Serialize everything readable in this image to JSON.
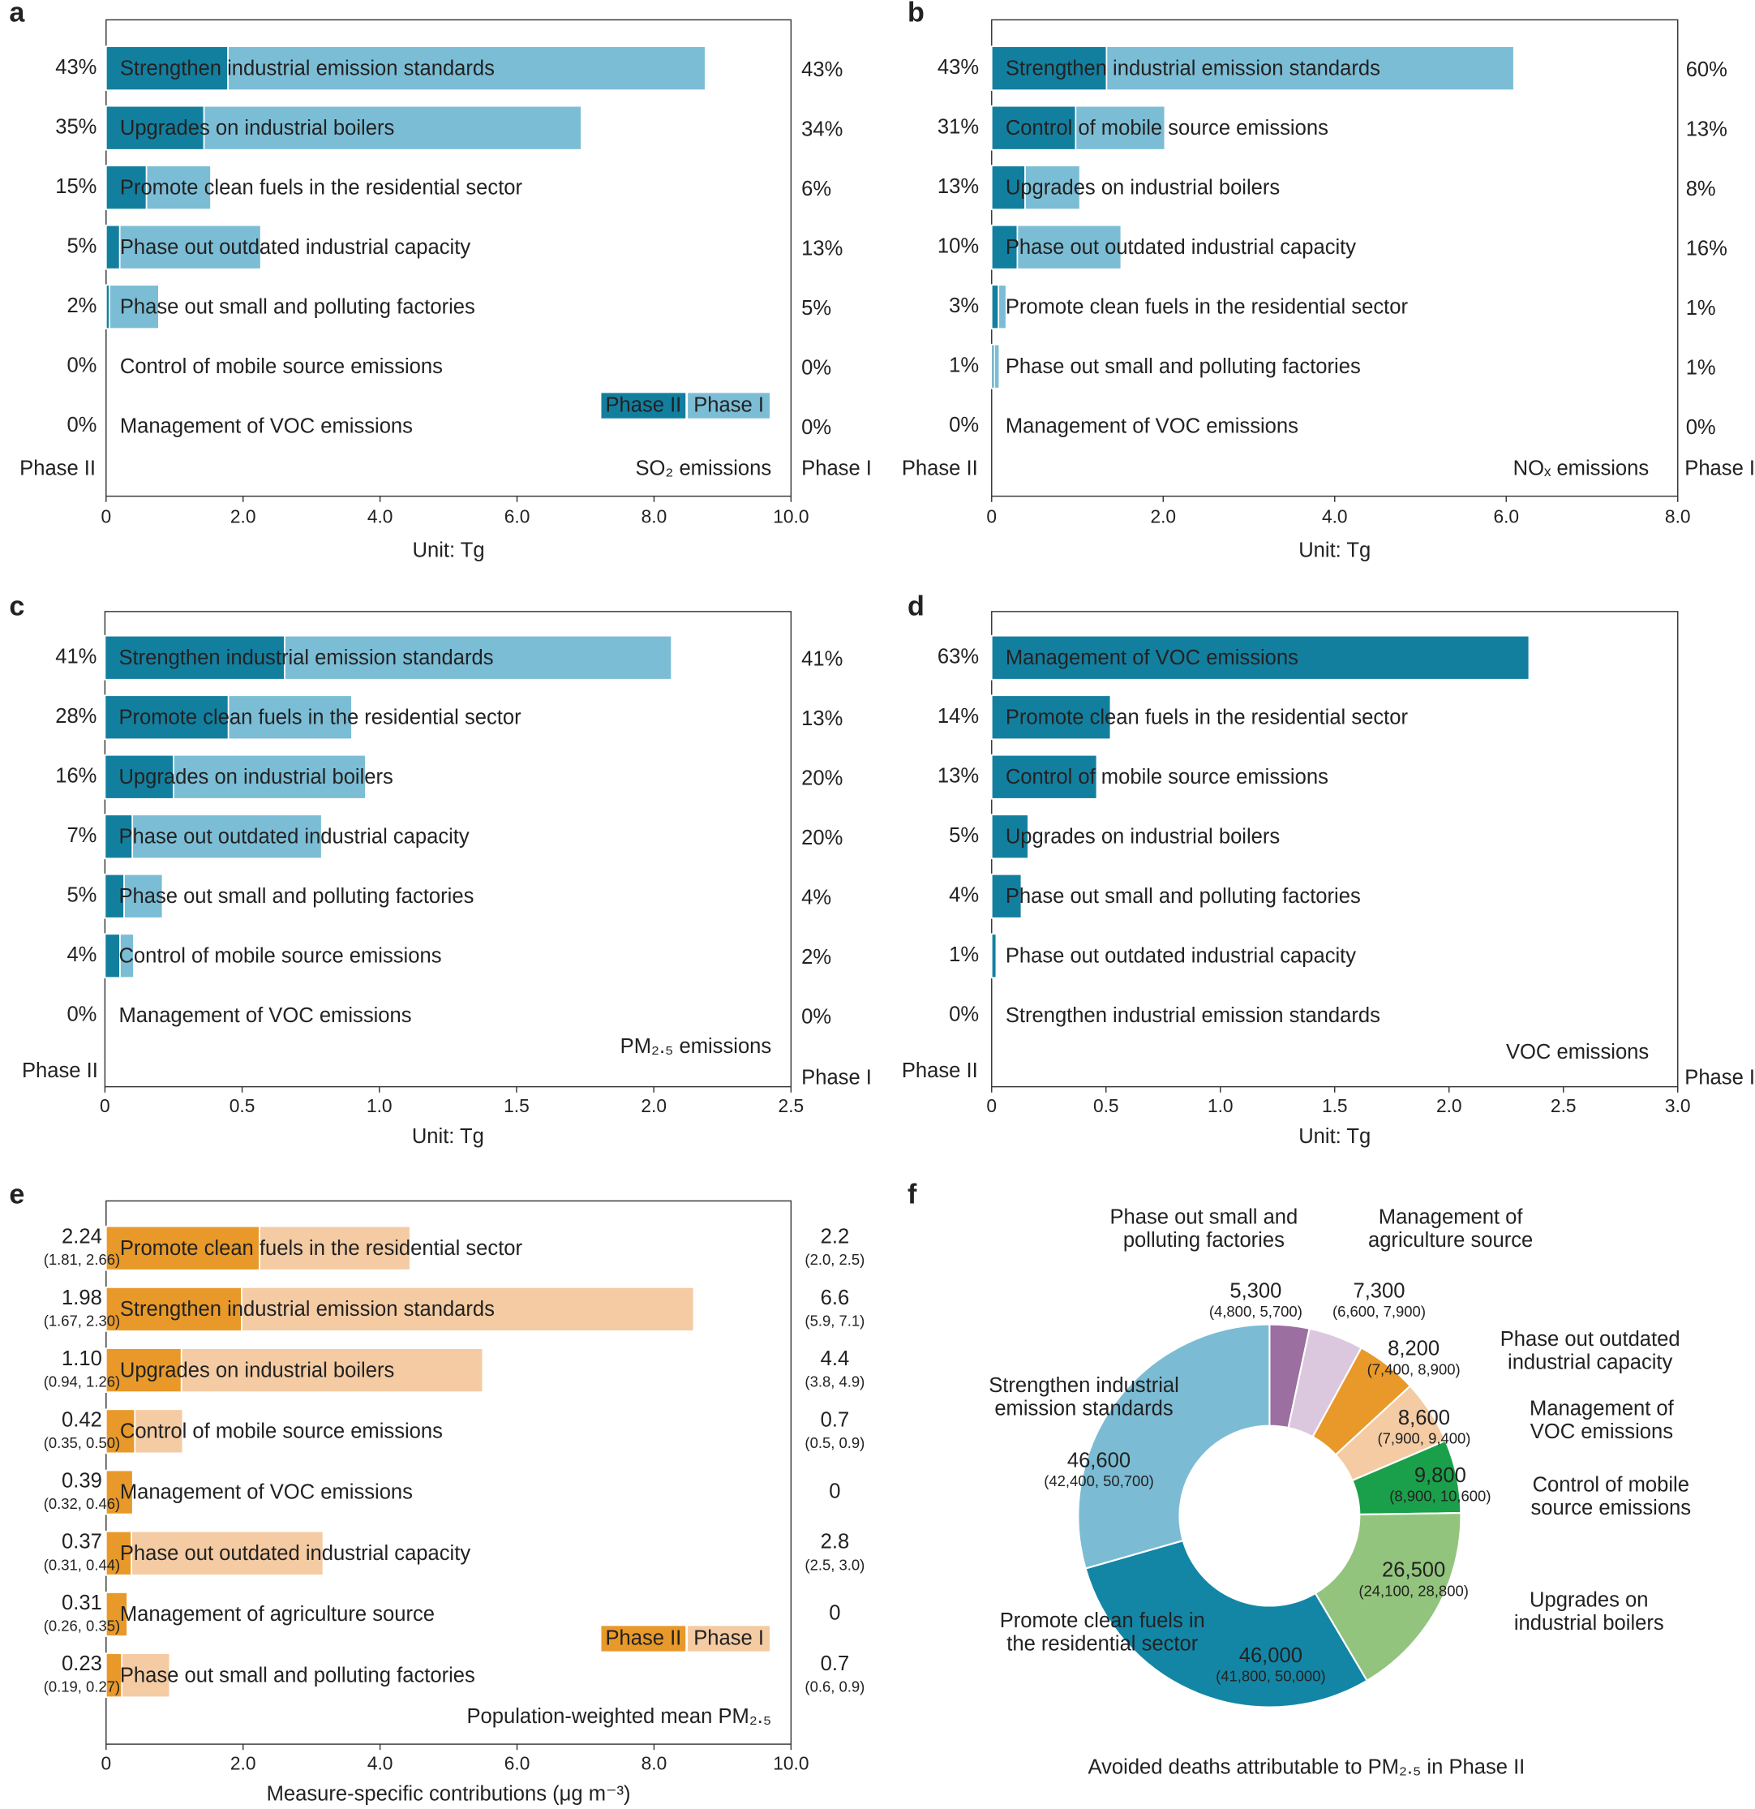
{
  "chart_data": [
    {
      "panel": "a",
      "type": "bar",
      "orientation": "horizontal",
      "stacked": true,
      "title": "SO₂ emissions",
      "x_label": "Unit: Tg",
      "side_labels": [
        "Phase II",
        "Phase I"
      ],
      "categories": [
        "Strengthen industrial emission standards",
        "Upgrades on industrial boilers",
        "Promote clean fuels in the residential sector",
        "Phase out outdated industrial capacity",
        "Phase out small and polluting factories",
        "Control of mobile source emissions",
        "Management of VOC emissions"
      ],
      "series": [
        {
          "name": "Phase II",
          "color": "#137f9f",
          "values": [
            1.78,
            1.43,
            0.59,
            0.2,
            0.05,
            0,
            0
          ]
        },
        {
          "name": "Phase I",
          "color": "#7bbdd5",
          "values": [
            6.97,
            5.51,
            0.94,
            2.06,
            0.72,
            0,
            0
          ]
        }
      ],
      "left_labels": [
        "43%",
        "35%",
        "15%",
        "5%",
        "2%",
        "0%",
        "0%"
      ],
      "right_labels": [
        "43%",
        "34%",
        "6%",
        "13%",
        "5%",
        "0%",
        "0%"
      ],
      "xlim": [
        0,
        10
      ],
      "xticks": [
        0,
        {
          "value": 2,
          "label": "2.0"
        },
        {
          "value": 4,
          "label": "4.0"
        },
        {
          "value": 6,
          "label": "6.0"
        },
        {
          "value": 8,
          "label": "8.0"
        },
        {
          "value": 10,
          "label": "10.0"
        }
      ],
      "legend": "lower right"
    },
    {
      "panel": "b",
      "type": "bar",
      "orientation": "horizontal",
      "stacked": true,
      "title": "NOₓ emissions",
      "x_label": "Unit: Tg",
      "side_labels": [
        "Phase II",
        "Phase I"
      ],
      "categories": [
        "Strengthen industrial emission standards",
        "Control of mobile source emissions",
        "Upgrades on industrial boilers",
        "Phase out outdated industrial capacity",
        "Promote clean fuels in the residential sector",
        "Phase out small and polluting factories",
        "Management of VOC emissions"
      ],
      "series": [
        {
          "name": "Phase II",
          "color": "#137f9f",
          "values": [
            1.34,
            0.98,
            0.39,
            0.3,
            0.08,
            0.03,
            0
          ]
        },
        {
          "name": "Phase I",
          "color": "#7bbdd5",
          "values": [
            4.75,
            1.04,
            0.64,
            1.21,
            0.09,
            0.06,
            0
          ]
        }
      ],
      "left_labels": [
        "43%",
        "31%",
        "13%",
        "10%",
        "3%",
        "1%",
        "0%"
      ],
      "right_labels": [
        "60%",
        "13%",
        "8%",
        "16%",
        "1%",
        "1%",
        "0%"
      ],
      "xlim": [
        0,
        8
      ],
      "xticks": [
        0,
        {
          "value": 2,
          "label": "2.0"
        },
        {
          "value": 4,
          "label": "4.0"
        },
        {
          "value": 6,
          "label": "6.0"
        },
        {
          "value": 8,
          "label": "8.0"
        }
      ]
    },
    {
      "panel": "c",
      "type": "bar",
      "orientation": "horizontal",
      "stacked": true,
      "title": "PM₂.₅ emissions",
      "x_label": "Unit: Tg",
      "side_labels": [
        "Phase II",
        "Phase I"
      ],
      "categories": [
        "Strengthen industrial emission standards",
        "Promote clean fuels in the residential sector",
        "Upgrades on industrial boilers",
        "Phase out outdated industrial capacity",
        "Phase out small and polluting factories",
        "Control of mobile source emissions",
        "Management of VOC emissions"
      ],
      "series": [
        {
          "name": "Phase II",
          "color": "#137f9f",
          "values": [
            0.655,
            0.45,
            0.25,
            0.1,
            0.07,
            0.055,
            0
          ]
        },
        {
          "name": "Phase I",
          "color": "#7bbdd5",
          "values": [
            1.41,
            0.45,
            0.7,
            0.69,
            0.14,
            0.05,
            0
          ]
        }
      ],
      "left_labels": [
        "41%",
        "28%",
        "16%",
        "7%",
        "5%",
        "4%",
        "0%"
      ],
      "right_labels": [
        "41%",
        "13%",
        "20%",
        "20%",
        "4%",
        "2%",
        "0%"
      ],
      "xlim": [
        0,
        2.5
      ],
      "xticks": [
        0,
        0.5,
        {
          "value": 1,
          "label": "1.0"
        },
        1.5,
        {
          "value": 2,
          "label": "2.0"
        },
        2.5
      ]
    },
    {
      "panel": "d",
      "type": "bar",
      "orientation": "horizontal",
      "stacked": true,
      "title": "VOC emissions",
      "x_label": "Unit: Tg",
      "side_labels": [
        "Phase II",
        "Phase I"
      ],
      "categories": [
        "Management of VOC emissions",
        "Promote clean fuels in the residential sector",
        "Control of mobile source emissions",
        "Upgrades on industrial boilers",
        "Phase out small and polluting factories",
        "Phase out outdated industrial capacity",
        "Strengthen industrial emission standards"
      ],
      "series": [
        {
          "name": "Phase II",
          "color": "#137f9f",
          "values": [
            2.35,
            0.52,
            0.46,
            0.16,
            0.13,
            0.02,
            0
          ]
        }
      ],
      "left_labels": [
        "63%",
        "14%",
        "13%",
        "5%",
        "4%",
        "1%",
        "0%"
      ],
      "xlim": [
        0,
        3
      ],
      "xticks": [
        0,
        0.5,
        {
          "value": 1,
          "label": "1.0"
        },
        1.5,
        {
          "value": 2,
          "label": "2.0"
        },
        2.5,
        {
          "value": 3,
          "label": "3.0"
        }
      ]
    },
    {
      "panel": "e",
      "type": "bar",
      "orientation": "horizontal",
      "stacked": true,
      "title": "Population-weighted mean PM₂.₅",
      "x_label": "Measure-specific contributions (μg m⁻³)",
      "categories": [
        "Promote clean fuels in the residential sector",
        "Strengthen industrial emission standards",
        "Upgrades on industrial boilers",
        "Control of mobile source emissions",
        "Management of VOC emissions",
        "Phase out outdated industrial capacity",
        "Management of agriculture source",
        "Phase out small and polluting factories"
      ],
      "series": [
        {
          "name": "Phase II",
          "color": "#e8992a",
          "values": [
            2.24,
            1.98,
            1.1,
            0.42,
            0.39,
            0.37,
            0.31,
            0.23
          ],
          "value_labels": [
            "2.24",
            "1.98",
            "1.10",
            "0.42",
            "0.39",
            "0.37",
            "0.31",
            "0.23"
          ]
        },
        {
          "name": "Phase I",
          "color": "#f4cba2",
          "values": [
            2.2,
            6.6,
            4.4,
            0.7,
            0,
            2.8,
            0,
            0.7
          ]
        }
      ],
      "left_intervals": [
        "(1.81, 2.66)",
        "(1.67, 2.30)",
        "(0.94, 1.26)",
        "(0.35, 0.50)",
        "(0.32, 0.46)",
        "(0.31, 0.44)",
        "(0.26, 0.35)",
        "(0.19, 0.27)"
      ],
      "right_intervals": [
        "(2.0, 2.5)",
        "(5.9, 7.1)",
        "(3.8, 4.9)",
        "(0.5, 0.9)",
        null,
        "(2.5, 3.0)",
        null,
        "(0.6, 0.9)"
      ],
      "xlim": [
        0,
        10
      ],
      "xticks": [
        0,
        {
          "value": 2,
          "label": "2.0"
        },
        {
          "value": 4,
          "label": "4.0"
        },
        {
          "value": 6,
          "label": "6.0"
        },
        {
          "value": 8,
          "label": "8.0"
        },
        {
          "value": 10,
          "label": "10.0"
        }
      ],
      "legend": "lower right"
    },
    {
      "panel": "f",
      "type": "pie",
      "donut": true,
      "title": "Avoided deaths attributable to PM₂.₅ in Phase II",
      "categories": [
        [
          "Phase out small and",
          "polluting factories"
        ],
        [
          "Management of",
          "agriculture source"
        ],
        [
          "Phase out outdated",
          "industrial capacity"
        ],
        [
          "Management of",
          "VOC emissions"
        ],
        [
          "Control of mobile",
          "source emissions"
        ],
        [
          "Upgrades on",
          "industrial boilers"
        ],
        [
          "Promote clean fuels in",
          "the residential sector"
        ],
        [
          "Strengthen industrial",
          "emission standards"
        ]
      ],
      "values": [
        5300,
        7300,
        8200,
        8600,
        9800,
        26500,
        46000,
        46600
      ],
      "value_labels": [
        "5,300",
        "7,300",
        "8,200",
        "8,600",
        "9,800",
        "26,500",
        "46,000",
        "46,600"
      ],
      "intervals": [
        "(4,800, 5,700)",
        "(6,600, 7,900)",
        "(7,400, 8,900)",
        "(7,900, 9,400)",
        "(8,900, 10,600)",
        "(24,100, 28,800)",
        "(41,800, 50,000)",
        "(42,400, 50,700)"
      ],
      "colors": [
        "#9b6fa0",
        "#dbc7de",
        "#e8992a",
        "#f4cba2",
        "#1aa04a",
        "#93c47d",
        "#1386a6",
        "#7bbcd4"
      ]
    }
  ]
}
